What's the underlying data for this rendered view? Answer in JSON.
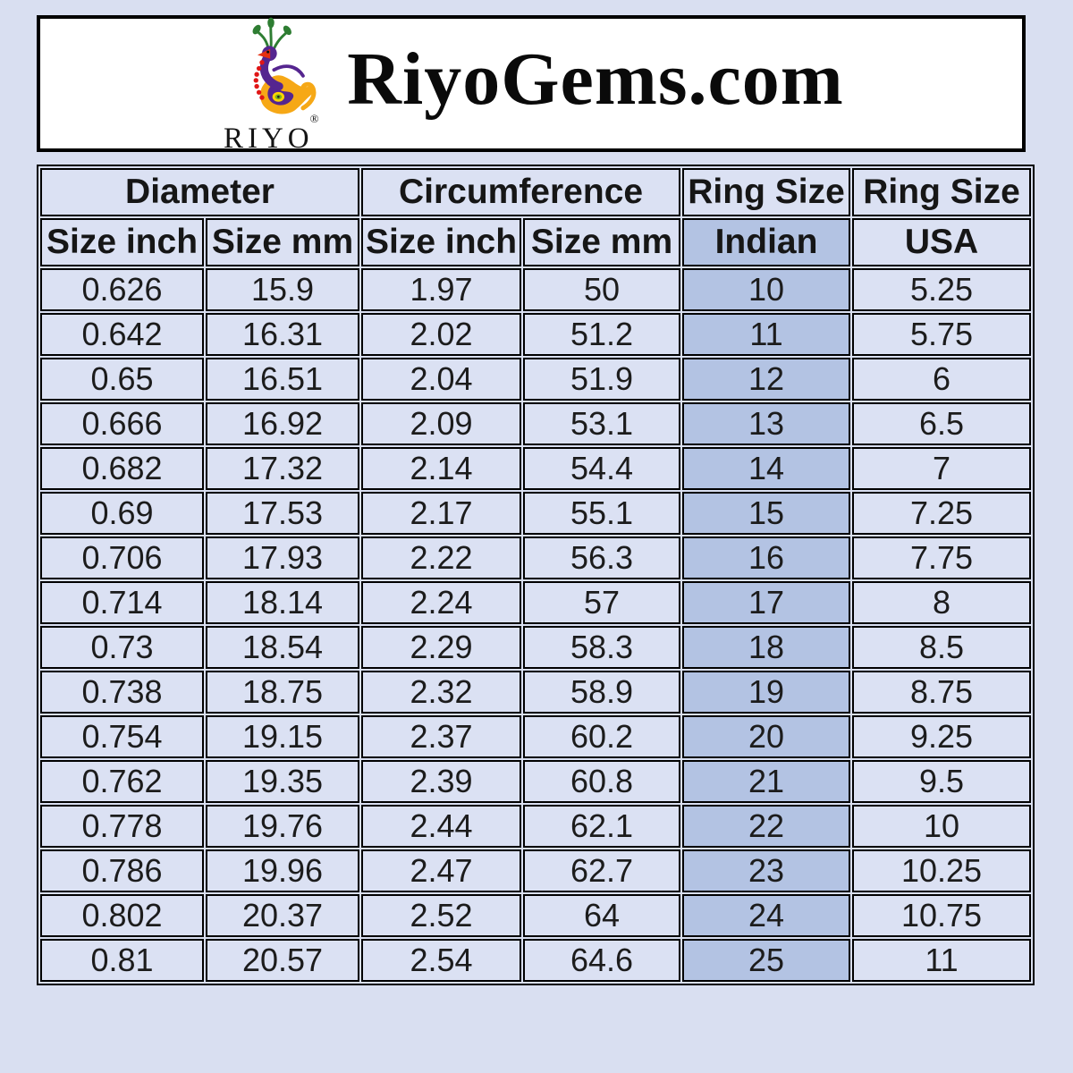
{
  "page_background": "#d9dff1",
  "header": {
    "title": "RiyoGems.com",
    "logo_brand": "RIYO",
    "logo_registered": "®",
    "logo_colors": {
      "crest_green": "#2e7d32",
      "body_purple": "#55258f",
      "tail_orange": "#f6a816",
      "beak_red": "#e53012",
      "dots_red": "#e01616",
      "eye_yellow": "#ffd400",
      "eye_green": "#7ab317"
    }
  },
  "table": {
    "group_headers": [
      {
        "label": "Diameter",
        "colspan": 2
      },
      {
        "label": "Circumference",
        "colspan": 2
      },
      {
        "label": "Ring Size",
        "colspan": 1
      },
      {
        "label": "Ring Size",
        "colspan": 1
      }
    ],
    "sub_headers": [
      "Size inch",
      "Size mm",
      "Size inch",
      "Size mm",
      "Indian",
      "USA"
    ],
    "colors": {
      "cell_background": "#dbe1f3",
      "indian_column_background": "#b3c3e3",
      "border": "#000000"
    },
    "rows": [
      [
        "0.626",
        "15.9",
        "1.97",
        "50",
        "10",
        "5.25"
      ],
      [
        "0.642",
        "16.31",
        "2.02",
        "51.2",
        "11",
        "5.75"
      ],
      [
        "0.65",
        "16.51",
        "2.04",
        "51.9",
        "12",
        "6"
      ],
      [
        "0.666",
        "16.92",
        "2.09",
        "53.1",
        "13",
        "6.5"
      ],
      [
        "0.682",
        "17.32",
        "2.14",
        "54.4",
        "14",
        "7"
      ],
      [
        "0.69",
        "17.53",
        "2.17",
        "55.1",
        "15",
        "7.25"
      ],
      [
        "0.706",
        "17.93",
        "2.22",
        "56.3",
        "16",
        "7.75"
      ],
      [
        "0.714",
        "18.14",
        "2.24",
        "57",
        "17",
        "8"
      ],
      [
        "0.73",
        "18.54",
        "2.29",
        "58.3",
        "18",
        "8.5"
      ],
      [
        "0.738",
        "18.75",
        "2.32",
        "58.9",
        "19",
        "8.75"
      ],
      [
        "0.754",
        "19.15",
        "2.37",
        "60.2",
        "20",
        "9.25"
      ],
      [
        "0.762",
        "19.35",
        "2.39",
        "60.8",
        "21",
        "9.5"
      ],
      [
        "0.778",
        "19.76",
        "2.44",
        "62.1",
        "22",
        "10"
      ],
      [
        "0.786",
        "19.96",
        "2.47",
        "62.7",
        "23",
        "10.25"
      ],
      [
        "0.802",
        "20.37",
        "2.52",
        "64",
        "24",
        "10.75"
      ],
      [
        "0.81",
        "20.57",
        "2.54",
        "64.6",
        "25",
        "11"
      ]
    ]
  },
  "chart_data": {
    "type": "table",
    "title": "RiyoGems.com ring size conversion chart",
    "columns": [
      "Diameter Size inch",
      "Diameter Size mm",
      "Circumference Size inch",
      "Circumference Size mm",
      "Ring Size Indian",
      "Ring Size USA"
    ],
    "rows": [
      [
        0.626,
        15.9,
        1.97,
        50,
        10,
        5.25
      ],
      [
        0.642,
        16.31,
        2.02,
        51.2,
        11,
        5.75
      ],
      [
        0.65,
        16.51,
        2.04,
        51.9,
        12,
        6
      ],
      [
        0.666,
        16.92,
        2.09,
        53.1,
        13,
        6.5
      ],
      [
        0.682,
        17.32,
        2.14,
        54.4,
        14,
        7
      ],
      [
        0.69,
        17.53,
        2.17,
        55.1,
        15,
        7.25
      ],
      [
        0.706,
        17.93,
        2.22,
        56.3,
        16,
        7.75
      ],
      [
        0.714,
        18.14,
        2.24,
        57,
        17,
        8
      ],
      [
        0.73,
        18.54,
        2.29,
        58.3,
        18,
        8.5
      ],
      [
        0.738,
        18.75,
        2.32,
        58.9,
        19,
        8.75
      ],
      [
        0.754,
        19.15,
        2.37,
        60.2,
        20,
        9.25
      ],
      [
        0.762,
        19.35,
        2.39,
        60.8,
        21,
        9.5
      ],
      [
        0.778,
        19.76,
        2.44,
        62.1,
        22,
        10
      ],
      [
        0.786,
        19.96,
        2.47,
        62.7,
        23,
        10.25
      ],
      [
        0.802,
        20.37,
        2.52,
        64,
        24,
        10.75
      ],
      [
        0.81,
        20.57,
        2.54,
        64.6,
        25,
        11
      ]
    ],
    "highlighted_column": "Ring Size Indian",
    "legend_position": "none",
    "grid": true
  }
}
